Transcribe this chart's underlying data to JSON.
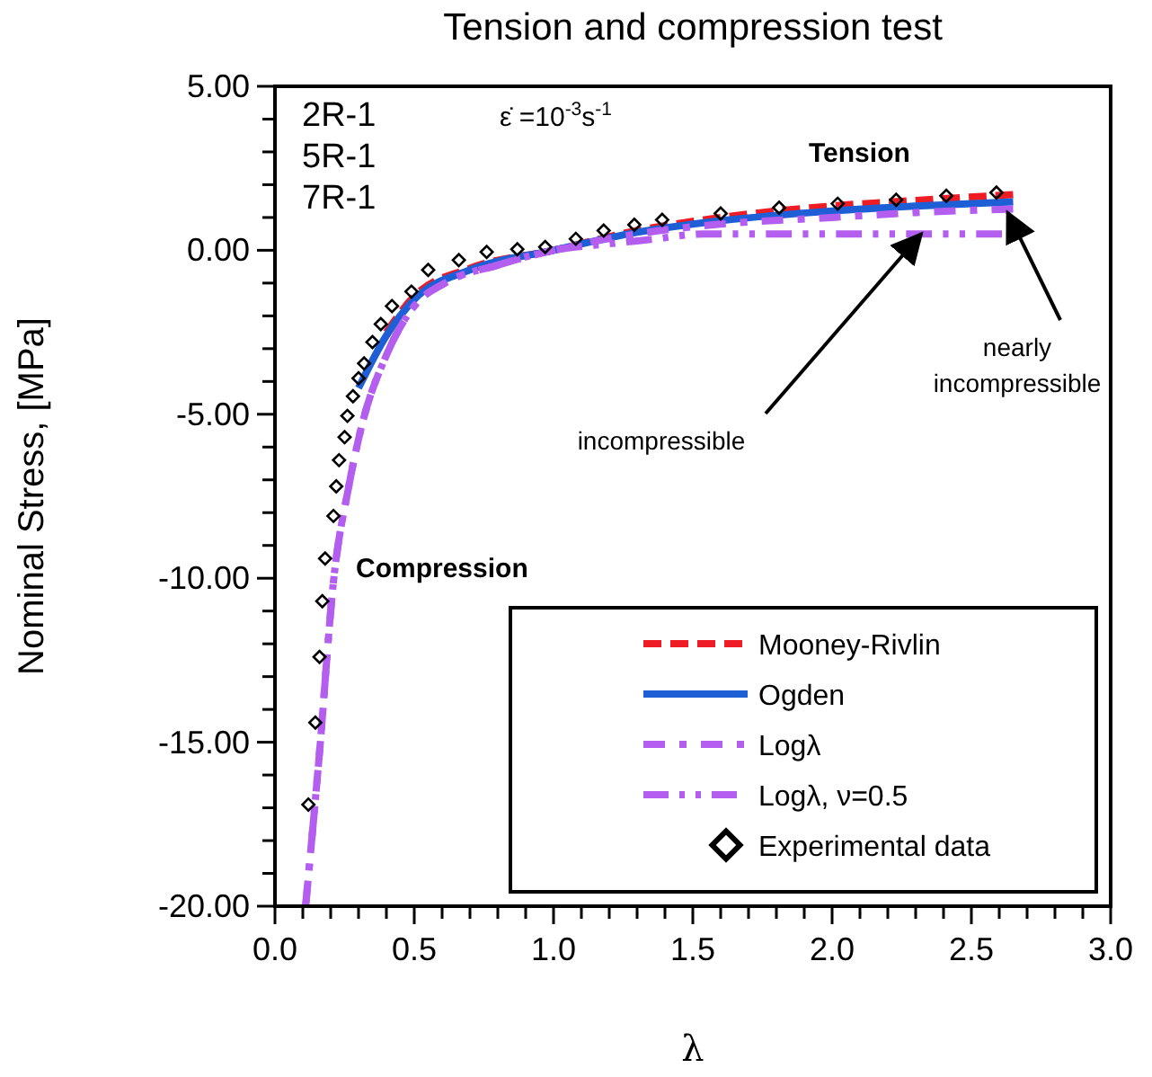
{
  "chart_data": {
    "type": "line",
    "title": "Tension and compression test",
    "xlabel": "λ",
    "ylabel": "Nominal Stress, [MPa]",
    "xlim": [
      0,
      3
    ],
    "ylim": [
      -20,
      5
    ],
    "xticks": [
      {
        "value": 0,
        "label": "0.0"
      },
      {
        "value": 0.1,
        "label": null
      },
      {
        "value": 0.2,
        "label": null
      },
      {
        "value": 0.3,
        "label": null
      },
      {
        "value": 0.4,
        "label": null
      },
      {
        "value": 0.5,
        "label": "0.5"
      },
      {
        "value": 0.6,
        "label": null
      },
      {
        "value": 0.7,
        "label": null
      },
      {
        "value": 0.8,
        "label": null
      },
      {
        "value": 0.9,
        "label": null
      },
      {
        "value": 1,
        "label": "1.0"
      },
      {
        "value": 1.1,
        "label": null
      },
      {
        "value": 1.2,
        "label": null
      },
      {
        "value": 1.3,
        "label": null
      },
      {
        "value": 1.4,
        "label": null
      },
      {
        "value": 1.5,
        "label": "1.5"
      },
      {
        "value": 1.6,
        "label": null
      },
      {
        "value": 1.7,
        "label": null
      },
      {
        "value": 1.8,
        "label": null
      },
      {
        "value": 1.9,
        "label": null
      },
      {
        "value": 2,
        "label": "2.0"
      },
      {
        "value": 2.1,
        "label": null
      },
      {
        "value": 2.2,
        "label": null
      },
      {
        "value": 2.3,
        "label": null
      },
      {
        "value": 2.4,
        "label": null
      },
      {
        "value": 2.5,
        "label": "2.5"
      },
      {
        "value": 2.6,
        "label": null
      },
      {
        "value": 2.7,
        "label": null
      },
      {
        "value": 2.8,
        "label": null
      },
      {
        "value": 2.9,
        "label": null
      },
      {
        "value": 3,
        "label": "3.0"
      }
    ],
    "yticks": [
      {
        "value": -20,
        "label": "-20.00"
      },
      {
        "value": -19,
        "label": null
      },
      {
        "value": -18,
        "label": null
      },
      {
        "value": -17,
        "label": null
      },
      {
        "value": -16,
        "label": null
      },
      {
        "value": -15,
        "label": "-15.00"
      },
      {
        "value": -14,
        "label": null
      },
      {
        "value": -13,
        "label": null
      },
      {
        "value": -12,
        "label": null
      },
      {
        "value": -11,
        "label": null
      },
      {
        "value": -10,
        "label": "-10.00"
      },
      {
        "value": -9,
        "label": null
      },
      {
        "value": -8,
        "label": null
      },
      {
        "value": -7,
        "label": null
      },
      {
        "value": -6,
        "label": null
      },
      {
        "value": -5,
        "label": "-5.00"
      },
      {
        "value": -4,
        "label": null
      },
      {
        "value": -3,
        "label": null
      },
      {
        "value": -2,
        "label": null
      },
      {
        "value": -1,
        "label": null
      },
      {
        "value": 0,
        "label": "0.00"
      },
      {
        "value": 1,
        "label": null
      },
      {
        "value": 2,
        "label": null
      },
      {
        "value": 3,
        "label": null
      },
      {
        "value": 4,
        "label": null
      },
      {
        "value": 5,
        "label": "5.00"
      }
    ],
    "legend": "bottom right",
    "grid": false,
    "series": [
      {
        "name": "Mooney-Rivlin",
        "color": "#ee1c25",
        "line_style": "dashed",
        "x": [
          0.4,
          0.5,
          0.7,
          1.0,
          1.3,
          1.6,
          2.0,
          2.3,
          2.65
        ],
        "values": [
          -2.5,
          -1.4,
          -0.55,
          0,
          0.6,
          1.0,
          1.35,
          1.52,
          1.7
        ]
      },
      {
        "name": "Ogden",
        "color": "#1f5fd6",
        "line_style": "solid",
        "x": [
          0.3,
          0.4,
          0.5,
          0.7,
          1.0,
          1.3,
          1.6,
          2.0,
          2.3,
          2.65
        ],
        "values": [
          -4.2,
          -2.6,
          -1.5,
          -0.6,
          0,
          0.55,
          0.9,
          1.2,
          1.35,
          1.48
        ]
      },
      {
        "name": "Logλ",
        "color": "#b45ef0",
        "line_style": "dashdot",
        "x": [
          0.11,
          0.16,
          0.21,
          0.265,
          0.31,
          0.4,
          0.5,
          0.61,
          0.8,
          1.0,
          1.3,
          1.6,
          2.0,
          2.3,
          2.65
        ],
        "values": [
          -20,
          -15.3,
          -10.1,
          -7.2,
          -5.4,
          -3.2,
          -1.7,
          -1.0,
          -0.45,
          0,
          0.5,
          0.8,
          1.0,
          1.15,
          1.26
        ]
      },
      {
        "name": "Logλ, ν=0.5",
        "color": "#b45ef0",
        "line_style": "dashdotdot",
        "x": [
          0.11,
          0.16,
          0.21,
          0.265,
          0.31,
          0.4,
          0.5,
          0.61,
          0.8,
          1.0,
          1.2,
          1.35,
          1.54,
          2.0,
          2.61
        ],
        "values": [
          -20,
          -15.3,
          -10.1,
          -7.2,
          -5.4,
          -3.2,
          -1.7,
          -1.0,
          -0.45,
          0,
          0.2,
          0.33,
          0.5,
          0.5,
          0.5
        ]
      },
      {
        "name": "Experimental data",
        "type": "scatter",
        "color": "#000000",
        "marker": "diamond",
        "x": [
          0.12,
          0.145,
          0.16,
          0.17,
          0.18,
          0.21,
          0.22,
          0.23,
          0.25,
          0.26,
          0.28,
          0.3,
          0.32,
          0.35,
          0.38,
          0.42,
          0.49,
          0.55,
          0.66,
          0.76,
          0.87,
          0.97,
          1.08,
          1.18,
          1.29,
          1.39,
          1.6,
          1.81,
          2.02,
          2.23,
          2.41,
          2.59
        ],
        "values": [
          -16.9,
          -14.4,
          -12.4,
          -10.7,
          -9.4,
          -8.1,
          -7.2,
          -6.4,
          -5.7,
          -5.05,
          -4.45,
          -3.9,
          -3.45,
          -2.8,
          -2.25,
          -1.7,
          -1.26,
          -0.6,
          -0.3,
          -0.05,
          0.03,
          0.1,
          0.35,
          0.6,
          0.78,
          0.93,
          1.12,
          1.3,
          1.42,
          1.54,
          1.66,
          1.76
        ]
      }
    ],
    "annotations": [
      "2R-1",
      "5R-1",
      "7R-1",
      "ε̇ =10$^{-3}$s$^{-1}$",
      "Tension",
      "Compression",
      {
        "text": "incompressible",
        "x": 2.32,
        "y": 0.5
      },
      {
        "text": "nearly incompressible",
        "x": 2.63,
        "y": 1.15
      }
    ]
  }
}
